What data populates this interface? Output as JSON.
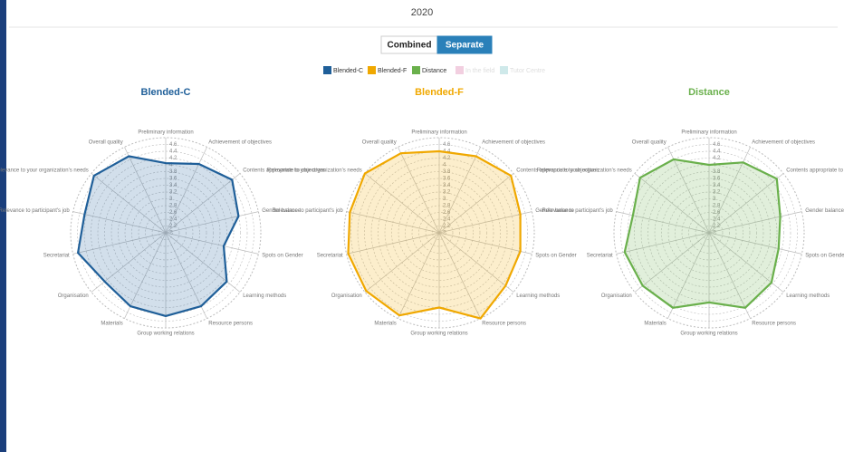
{
  "header": {
    "year": "2020"
  },
  "toggle": [
    {
      "label": "Combined",
      "active": false
    },
    {
      "label": "Separate",
      "active": true
    }
  ],
  "legend": [
    {
      "name": "Blended-C",
      "color": "#1f5f99",
      "hidden": false
    },
    {
      "name": "Blended-F",
      "color": "#f0a800",
      "hidden": false
    },
    {
      "name": "Distance",
      "color": "#6ab04c",
      "hidden": false
    },
    {
      "name": "In the field",
      "color": "#f2cfe0",
      "hidden": true
    },
    {
      "name": "Tutor Centre",
      "color": "#cfe9ea",
      "hidden": true
    }
  ],
  "chart_data": [
    {
      "type": "radar",
      "title": "Blended-C",
      "color": "#1f5f99",
      "fill": "rgba(31,95,153,0.2)",
      "categories": [
        "Preliminary information",
        "Achievement of objectives",
        "Contents appropriate to objectives",
        "Gender balance",
        "Spots on Gender",
        "Learning methods",
        "Resource persons",
        "Group working relations",
        "Materials",
        "Organisation",
        "Secretariat",
        "Relevance to participant's job",
        "Relevance to your organization's needs",
        "Overall quality"
      ],
      "values": [
        4.05,
        4.25,
        4.5,
        4.2,
        3.75,
        4.3,
        4.4,
        4.45,
        4.4,
        4.3,
        4.65,
        4.45,
        4.7,
        4.5
      ],
      "rlim": [
        2,
        4.8
      ],
      "rticks": [
        2,
        2.2,
        2.4,
        2.6,
        2.8,
        3,
        3.2,
        3.4,
        3.6,
        3.8,
        4,
        4.2,
        4.4,
        4.6
      ]
    },
    {
      "type": "radar",
      "title": "Blended-F",
      "color": "#f0a800",
      "fill": "rgba(240,168,0,0.2)",
      "categories": [
        "Preliminary information",
        "Achievement of objectives",
        "Contents appropriate to objectives",
        "Gender balance",
        "Spots on Gender",
        "Learning methods",
        "Resource persons",
        "Group working relations",
        "Materials",
        "Organisation",
        "Secretariat",
        "Relevance to participant's job",
        "Relevance to your organization's needs",
        "Overall quality"
      ],
      "values": [
        4.4,
        4.5,
        4.7,
        4.45,
        4.45,
        4.5,
        4.8,
        4.2,
        4.7,
        4.75,
        4.75,
        4.7,
        4.8,
        4.6
      ],
      "rlim": [
        2,
        4.8
      ],
      "rticks": [
        2,
        2.2,
        2.4,
        2.6,
        2.8,
        3,
        3.2,
        3.4,
        3.6,
        3.8,
        4,
        4.2,
        4.4,
        4.6
      ]
    },
    {
      "type": "radar",
      "title": "Distance",
      "color": "#6ab04c",
      "fill": "rgba(106,176,76,0.2)",
      "categories": [
        "Preliminary information",
        "Achievement of objectives",
        "Contents appropriate to objectives",
        "Gender balance",
        "Spots on Gender",
        "Learning methods",
        "Resource persons",
        "Group working relations",
        "Materials",
        "Organisation",
        "Secretariat",
        "Relevance to participant's job",
        "Relevance to your organization's needs",
        "Overall quality"
      ],
      "values": [
        4.0,
        4.3,
        4.55,
        4.15,
        4.1,
        4.35,
        4.45,
        4.05,
        4.45,
        4.5,
        4.55,
        4.3,
        4.6,
        4.4
      ],
      "rlim": [
        2,
        4.8
      ],
      "rticks": [
        2,
        2.2,
        2.4,
        2.6,
        2.8,
        3,
        3.2,
        3.4,
        3.6,
        3.8,
        4,
        4.2,
        4.4,
        4.6
      ]
    }
  ]
}
